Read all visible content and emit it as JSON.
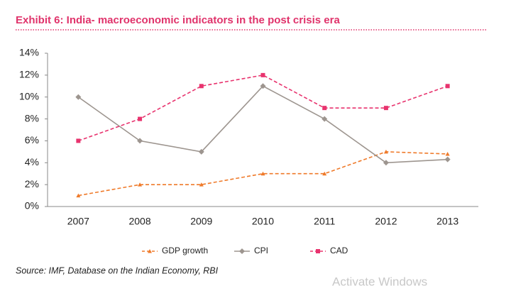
{
  "chart_data": {
    "type": "line",
    "title": "Exhibit 6: India- macroeconomic indicators in the post crisis era",
    "categories": [
      "2007",
      "2008",
      "2009",
      "2010",
      "2011",
      "2012",
      "2013"
    ],
    "series": [
      {
        "name": "GDP growth",
        "color": "#ef7a2a",
        "dash": true,
        "marker": "triangle",
        "values": [
          1,
          2,
          2,
          3,
          3,
          5,
          4.8
        ]
      },
      {
        "name": "CPI",
        "color": "#9d958f",
        "dash": false,
        "marker": "diamond",
        "values": [
          10,
          6,
          5,
          11,
          8,
          4,
          4.3
        ]
      },
      {
        "name": "CAD",
        "color": "#e8336e",
        "dash": true,
        "marker": "square",
        "values": [
          6,
          8,
          11,
          12,
          9,
          9,
          11
        ]
      }
    ],
    "ylim": [
      0,
      14
    ],
    "yticks": [
      {
        "value": 0,
        "label": "0%"
      },
      {
        "value": 2,
        "label": "2%"
      },
      {
        "value": 4,
        "label": "4%"
      },
      {
        "value": 6,
        "label": "6%"
      },
      {
        "value": 8,
        "label": "8%"
      },
      {
        "value": 10,
        "label": "10%"
      },
      {
        "value": 12,
        "label": "12%"
      },
      {
        "value": 14,
        "label": "14%"
      }
    ],
    "grid": false,
    "legend": "bottom",
    "source": "Source: IMF, Database on the Indian Economy, RBI"
  },
  "watermark": "Activate Windows"
}
